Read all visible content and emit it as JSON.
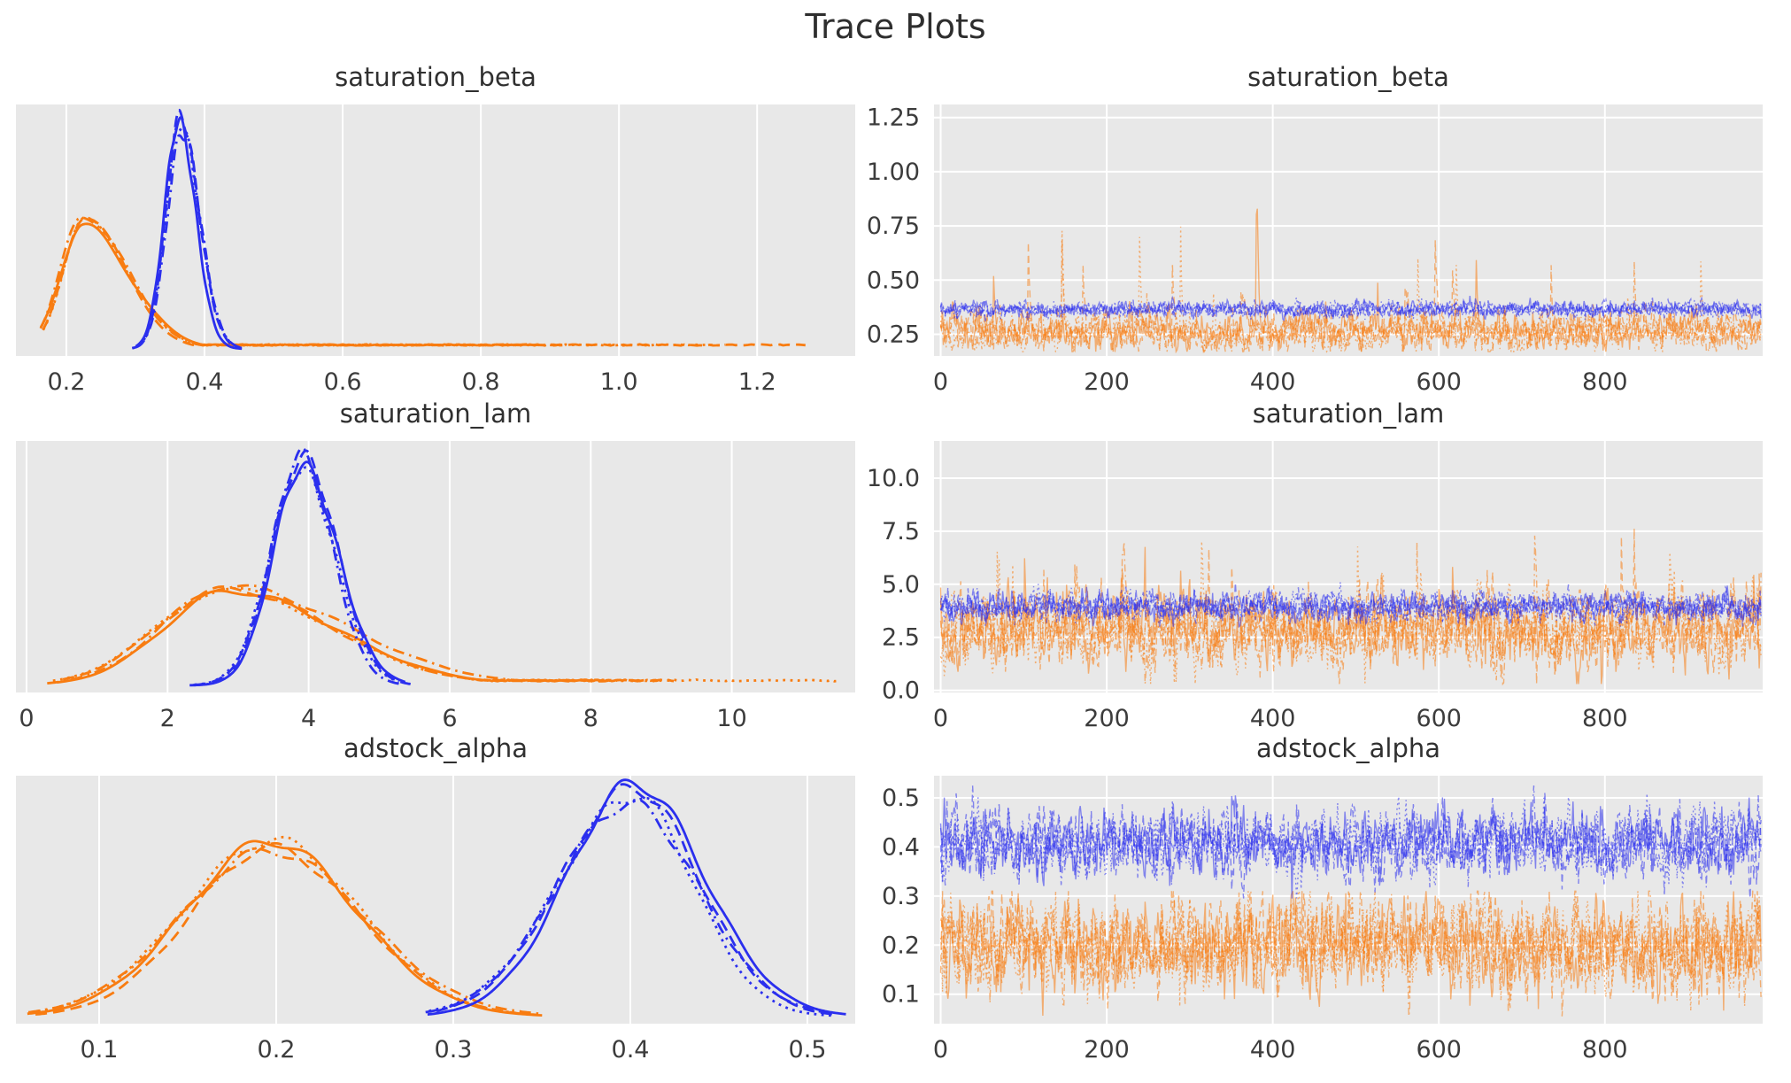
{
  "suptitle": "Trace Plots",
  "style": {
    "axes_background": "#e8e8e8",
    "grid_color": "#ffffff",
    "tick_text_color": "#3c3c3c",
    "title_text_color": "#303030",
    "blue": "#2b2fee",
    "orange": "#f87c11",
    "chains_per_color": 4,
    "line_styles": [
      "solid",
      "dashed",
      "dashdot",
      "dotted"
    ],
    "trace_opacity": 0.55
  },
  "chart_data": [
    {
      "kind": "kde",
      "type": "line",
      "title": "saturation_beta",
      "xlim": [
        0.127,
        1.342
      ],
      "xtick_values": [
        0.2,
        0.4,
        0.6,
        0.8,
        1.0,
        1.2
      ],
      "xtick_labels": [
        "0.2",
        "0.4",
        "0.6",
        "0.8",
        "1.0",
        "1.2"
      ],
      "groups": [
        {
          "color": "orange",
          "mu": 0.225,
          "sd_left": 0.03,
          "sd_right": 0.065,
          "height": 0.55,
          "start": 0.163,
          "end": 0.52,
          "tail_to": 1.27,
          "tail_height": 0.016,
          "tail_chain": 1
        },
        {
          "color": "blue",
          "mu": 0.365,
          "sd_left": 0.021,
          "sd_right": 0.026,
          "height": 0.97,
          "start": 0.298,
          "end": 0.455
        }
      ]
    },
    {
      "kind": "trace",
      "type": "line",
      "title": "saturation_beta",
      "xlim": [
        -8,
        990
      ],
      "xtick_values": [
        0,
        200,
        400,
        600,
        800
      ],
      "xtick_labels": [
        "0",
        "200",
        "400",
        "600",
        "800"
      ],
      "ylim": [
        0.15,
        1.31
      ],
      "ytick_values": [
        0.25,
        0.5,
        0.75,
        1.0,
        1.25
      ],
      "ytick_labels": [
        "0.25",
        "0.50",
        "0.75",
        "1.00",
        "1.25"
      ],
      "n_draws": 900,
      "groups": [
        {
          "color": "orange",
          "mean": 0.263,
          "sd": 0.038,
          "ar": 0.55,
          "spike_prob": 0.007,
          "spike_max": 0.95,
          "clip_min": 0.17,
          "clip_max": 1.295
        },
        {
          "color": "blue",
          "mean": 0.365,
          "sd": 0.016,
          "ar": 0.45,
          "spike_prob": 0,
          "spike_max": 0,
          "clip_min": 0.3,
          "clip_max": 0.44
        }
      ]
    },
    {
      "kind": "kde",
      "type": "line",
      "title": "saturation_lam",
      "xlim": [
        -0.15,
        11.75
      ],
      "xtick_values": [
        0,
        2,
        4,
        6,
        8,
        10
      ],
      "xtick_labels": [
        "0",
        "2",
        "4",
        "6",
        "8",
        "10"
      ],
      "groups": [
        {
          "color": "orange",
          "mu": 2.85,
          "sd_left": 0.95,
          "sd_right": 1.55,
          "height": 0.42,
          "start": 0.42,
          "end": 7.0,
          "tail_to": 11.5,
          "tail_height": 0.02,
          "tail_chain": 3
        },
        {
          "color": "blue",
          "mu": 3.92,
          "sd_left": 0.42,
          "sd_right": 0.48,
          "height": 0.97,
          "start": 2.35,
          "end": 5.35
        }
      ]
    },
    {
      "kind": "trace",
      "type": "line",
      "title": "saturation_lam",
      "xlim": [
        -8,
        990
      ],
      "xtick_values": [
        0,
        200,
        400,
        600,
        800
      ],
      "xtick_labels": [
        "0",
        "200",
        "400",
        "600",
        "800"
      ],
      "ylim": [
        -0.1,
        11.75
      ],
      "ytick_values": [
        0.0,
        2.5,
        5.0,
        7.5,
        10.0
      ],
      "ytick_labels": [
        "0.0",
        "2.5",
        "5.0",
        "7.5",
        "10.0"
      ],
      "n_draws": 900,
      "groups": [
        {
          "color": "orange",
          "mean": 2.85,
          "sd": 0.72,
          "ar": 0.55,
          "spike_prob": 0.012,
          "spike_max": 7.6,
          "clip_min": 0.3,
          "clip_max": 11.4
        },
        {
          "color": "blue",
          "mean": 3.95,
          "sd": 0.3,
          "ar": 0.45,
          "spike_prob": 0,
          "spike_max": 0,
          "clip_min": 3.0,
          "clip_max": 5.3
        }
      ]
    },
    {
      "kind": "kde",
      "type": "line",
      "title": "adstock_alpha",
      "xlim": [
        0.053,
        0.527
      ],
      "xtick_values": [
        0.1,
        0.2,
        0.3,
        0.4,
        0.5
      ],
      "xtick_labels": [
        "0.1",
        "0.2",
        "0.3",
        "0.4",
        "0.5"
      ],
      "groups": [
        {
          "color": "orange",
          "mu": 0.197,
          "sd_left": 0.048,
          "sd_right": 0.05,
          "height": 0.75,
          "start": 0.062,
          "end": 0.357
        },
        {
          "color": "blue",
          "mu": 0.402,
          "sd_left": 0.04,
          "sd_right": 0.037,
          "height": 0.97,
          "start": 0.285,
          "end": 0.517
        }
      ]
    },
    {
      "kind": "trace",
      "type": "line",
      "title": "adstock_alpha",
      "xlim": [
        -8,
        990
      ],
      "xtick_values": [
        0,
        200,
        400,
        600,
        800
      ],
      "xtick_labels": [
        "0",
        "200",
        "400",
        "600",
        "800"
      ],
      "ylim": [
        0.04,
        0.545
      ],
      "ytick_values": [
        0.1,
        0.2,
        0.3,
        0.4,
        0.5
      ],
      "ytick_labels": [
        "0.1",
        "0.2",
        "0.3",
        "0.4",
        "0.5"
      ],
      "n_draws": 900,
      "groups": [
        {
          "color": "orange",
          "mean": 0.199,
          "sd": 0.04,
          "ar": 0.5,
          "spike_prob": 0.005,
          "spike_max": 0.085,
          "clip_min": 0.055,
          "clip_max": 0.31
        },
        {
          "color": "blue",
          "mean": 0.409,
          "sd": 0.03,
          "ar": 0.5,
          "spike_prob": 0.004,
          "spike_max": -0.075,
          "clip_min": 0.295,
          "clip_max": 0.525
        }
      ]
    }
  ]
}
